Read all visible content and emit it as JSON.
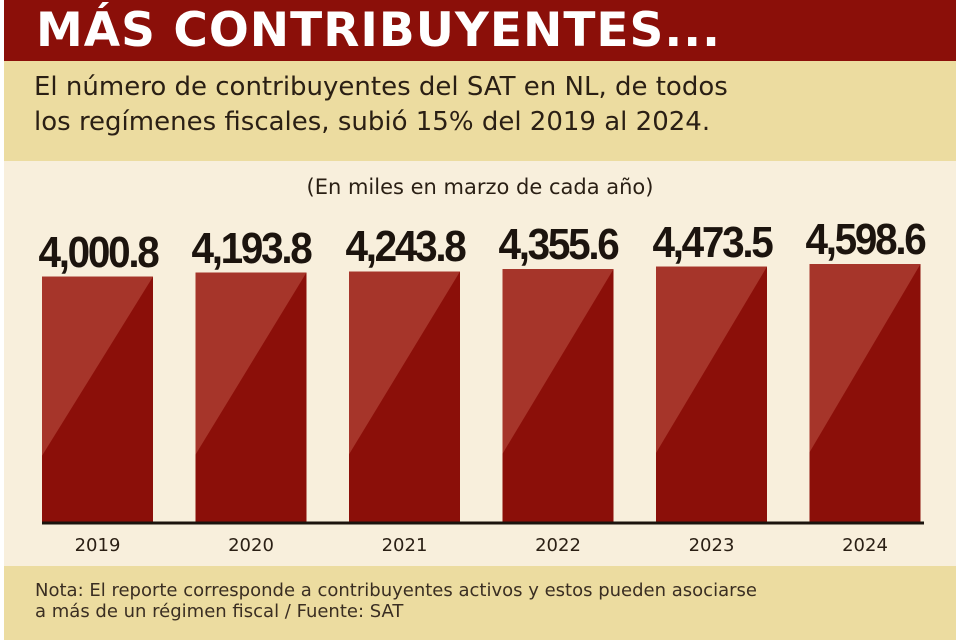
{
  "title": "MÁS CONTRIBUYENTES...",
  "subtitle": {
    "line1": "El número de contribuyentes del SAT en NL, de todos",
    "line2": "los regímenes fiscales, subió 15% del 2019 al 2024."
  },
  "units": "(En miles en marzo de cada año)",
  "note": {
    "line1": "Nota: El reporte corresponde a contribuyentes activos y estos pueden asociarse",
    "line2": "a más de un régimen fiscal / Fuente: SAT"
  },
  "colors": {
    "title_band": "#8b0f09",
    "subtitle_band": "#ecdca0",
    "chart_background": "#f8efdc",
    "bar_dark": "#8b0f09",
    "bar_light": "#a6352a",
    "baseline": "#1c140e"
  },
  "chart_data": {
    "type": "bar",
    "title": "MÁS CONTRIBUYENTES...",
    "subtitle": "El número de contribuyentes del SAT en NL, de todos los regímenes fiscales, subió 15% del 2019 al 2024.",
    "categories": [
      "2019",
      "2020",
      "2021",
      "2022",
      "2023",
      "2024"
    ],
    "values": [
      4000.8,
      4193.8,
      4243.8,
      4355.6,
      4473.5,
      4598.6
    ],
    "value_labels": [
      "4,000.8",
      "4,193.8",
      "4,243.8",
      "4,355.6",
      "4,473.5",
      "4,598.6"
    ],
    "xlabel": "",
    "ylabel": "(En miles en marzo de cada año)",
    "grid": false,
    "legend": "none"
  }
}
